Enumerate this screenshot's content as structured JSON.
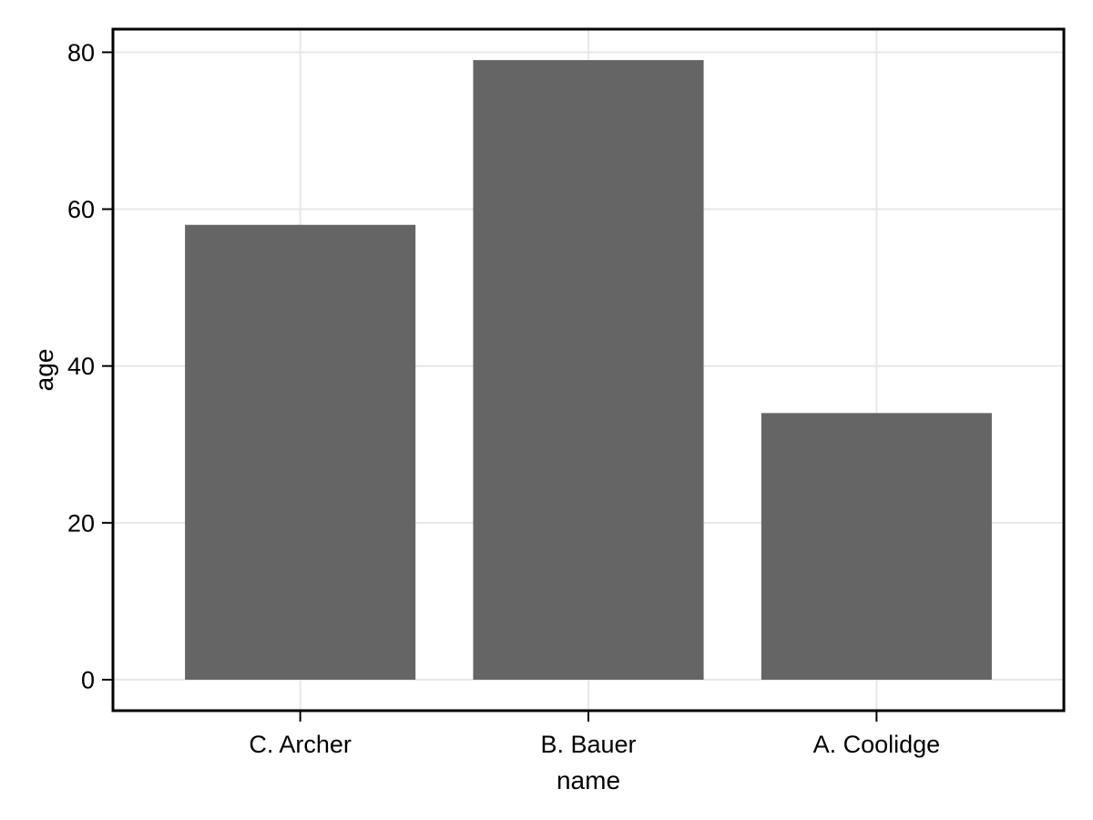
{
  "chart_data": {
    "type": "bar",
    "categories": [
      "C. Archer",
      "B. Bauer",
      "A. Coolidge"
    ],
    "values": [
      58,
      79,
      34
    ],
    "xlabel": "name",
    "ylabel": "age",
    "yticks": [
      0,
      20,
      40,
      60,
      80
    ],
    "ylim": [
      -3.95,
      82.95
    ],
    "bar_rel_width": 0.8,
    "edge_pad": 0.65,
    "grid": true,
    "legend": "none",
    "colors": {
      "bar": "#656565",
      "gridline": "#e7e7e7",
      "frame": "#000000",
      "text": "#000000",
      "background": "#ffffff"
    }
  }
}
